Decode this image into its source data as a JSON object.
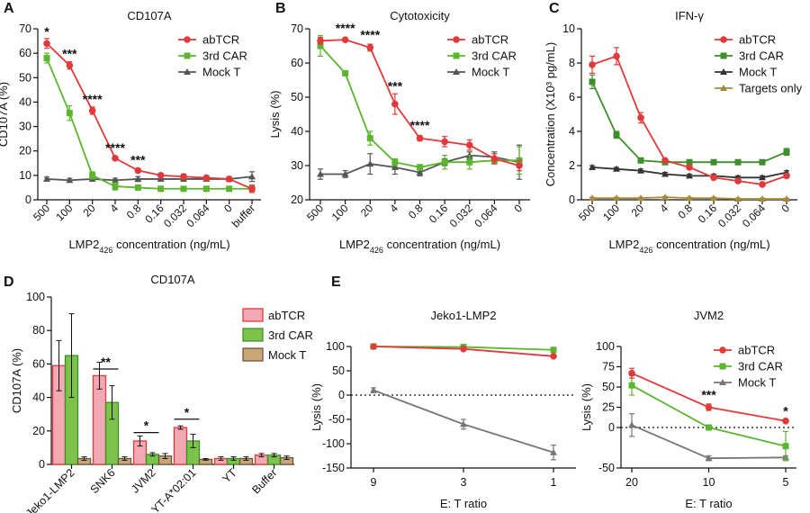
{
  "chart_data": [
    {
      "id": "A",
      "panel_letter": "A",
      "type": "line",
      "title": "CD107A",
      "xlabel_main": "LMP2",
      "xlabel_sub": "426",
      "xlabel_rest": " concentration (ng/mL)",
      "ylabel": "CD107A (%)",
      "ylim": [
        0,
        70
      ],
      "yticks": [
        0,
        10,
        20,
        30,
        40,
        50,
        60,
        70
      ],
      "categories": [
        "500",
        "100",
        "20",
        "4",
        "0.8",
        "0.16",
        "0.032",
        "0.064",
        "0",
        "buffer"
      ],
      "legend": "top-right",
      "series": [
        {
          "name": "abTCR",
          "color": "#e03a3a",
          "values": [
            64,
            55,
            36.5,
            17,
            12,
            10,
            9.5,
            9,
            8.5,
            4.5
          ],
          "err": [
            2,
            1.5,
            1.5,
            0.8,
            0.8,
            0.8,
            1,
            0.8,
            1,
            1.5
          ]
        },
        {
          "name": "3rd CAR",
          "color": "#5bb52f",
          "values": [
            58,
            35.5,
            10,
            5.5,
            5,
            4.5,
            4.5,
            4.5,
            4.5,
            4.5
          ],
          "err": [
            2,
            3,
            1.5,
            1.5,
            0.5,
            0.5,
            0.5,
            0.5,
            0.5,
            0.5
          ]
        },
        {
          "name": "Mock T",
          "color": "#555555",
          "values": [
            8.5,
            8,
            8.5,
            8,
            8.5,
            8.5,
            8.5,
            8.5,
            8.5,
            9.5
          ],
          "err": [
            0.8,
            0.8,
            0.8,
            0.8,
            1,
            0.8,
            0.8,
            0.8,
            0.8,
            2
          ]
        }
      ],
      "annotations": [
        {
          "text": "*",
          "x": 0,
          "y": 67
        },
        {
          "text": "***",
          "x": 1,
          "y": 58
        },
        {
          "text": "****",
          "x": 2,
          "y": 39.5
        },
        {
          "text": "****",
          "x": 3,
          "y": 19.5
        },
        {
          "text": "***",
          "x": 4,
          "y": 14.5
        }
      ]
    },
    {
      "id": "B",
      "panel_letter": "B",
      "type": "line",
      "title": "Cytotoxicity",
      "xlabel_main": "LMP2",
      "xlabel_sub": "426",
      "xlabel_rest": " concentration (ng/mL)",
      "ylabel": "Lysis (%)",
      "ylim": [
        20,
        70
      ],
      "yticks": [
        20,
        30,
        40,
        50,
        60,
        70
      ],
      "categories": [
        "500",
        "100",
        "20",
        "4",
        "0.8",
        "0.16",
        "0.032",
        "0.064",
        "0"
      ],
      "legend": "top-right",
      "series": [
        {
          "name": "abTCR",
          "color": "#e03a3a",
          "values": [
            66.5,
            66.8,
            64.5,
            48,
            38,
            37,
            36,
            32,
            30
          ],
          "err": [
            1,
            0.5,
            1,
            3,
            0.8,
            1.5,
            1.5,
            1.5,
            1.5
          ]
        },
        {
          "name": "3rd CAR",
          "color": "#5bb52f",
          "values": [
            65,
            57,
            38,
            31,
            29.5,
            31,
            31,
            31.5,
            31.5
          ],
          "err": [
            3,
            0.5,
            2,
            1,
            0.8,
            2,
            2,
            1,
            4
          ]
        },
        {
          "name": "Mock T",
          "color": "#555555",
          "values": [
            27.5,
            27.5,
            30.5,
            29.5,
            28,
            31,
            33,
            32.5,
            31
          ],
          "err": [
            1.5,
            1,
            3,
            2,
            1,
            1,
            1,
            1.5,
            5
          ]
        }
      ],
      "annotations": [
        {
          "text": "****",
          "x": 1,
          "y": 69
        },
        {
          "text": "****",
          "x": 2,
          "y": 67
        },
        {
          "text": "***",
          "x": 3,
          "y": 52
        },
        {
          "text": "****",
          "x": 4,
          "y": 40.5
        }
      ]
    },
    {
      "id": "C",
      "panel_letter": "C",
      "type": "line",
      "title": "IFN-γ",
      "xlabel_main": "LMP2",
      "xlabel_sub": "426",
      "xlabel_rest": " concentration (ng/mL)",
      "ylabel": "Concentration (X10³ pg/mL)",
      "ylim": [
        0,
        10
      ],
      "yticks": [
        0,
        2,
        4,
        6,
        8,
        10
      ],
      "categories": [
        "500",
        "100",
        "20",
        "4",
        "0.8",
        "0.16",
        "0.032",
        "0.064",
        "0"
      ],
      "legend": "top-right",
      "series": [
        {
          "name": "abTCR",
          "color": "#e03a3a",
          "values": [
            7.9,
            8.4,
            4.8,
            2.3,
            1.9,
            1.3,
            1.1,
            0.9,
            1.4
          ],
          "err": [
            0.5,
            0.5,
            0.3,
            0.1,
            0.1,
            0.1,
            0.1,
            0.1,
            0.1
          ]
        },
        {
          "name": "3rd CAR",
          "color": "#3e8f2c",
          "values": [
            6.9,
            3.8,
            2.3,
            2.2,
            2.2,
            2.2,
            2.2,
            2.2,
            2.8
          ],
          "err": [
            0.4,
            0.2,
            0.1,
            0.1,
            0.1,
            0.1,
            0.1,
            0.1,
            0.2
          ]
        },
        {
          "name": "Mock T",
          "color": "#333333",
          "values": [
            1.9,
            1.8,
            1.7,
            1.5,
            1.4,
            1.4,
            1.3,
            1.3,
            1.6
          ],
          "err": [
            0.1,
            0.1,
            0.1,
            0.1,
            0.1,
            0.1,
            0.1,
            0.1,
            0.1
          ]
        },
        {
          "name": "Targets only",
          "color": "#a58a3a",
          "values": [
            0.1,
            0.1,
            0.1,
            0.15,
            0.1,
            0.1,
            0.05,
            0.05,
            0.05
          ],
          "err": [
            0.05,
            0.05,
            0.05,
            0.05,
            0.05,
            0.05,
            0.05,
            0.05,
            0.05
          ]
        }
      ],
      "annotations": []
    },
    {
      "id": "D",
      "panel_letter": "D",
      "type": "bar",
      "title": "CD107A",
      "xlabel_main": "",
      "xlabel_sub": "",
      "xlabel_rest": "",
      "ylabel": "CD107A (%)",
      "ylim": [
        0,
        100
      ],
      "yticks": [
        0,
        20,
        40,
        60,
        80,
        100
      ],
      "categories": [
        "Jeko1-LMP2",
        "SNK6",
        "JVM2",
        "YT-A*02:01",
        "YT",
        "Buffer"
      ],
      "legend": "right",
      "series": [
        {
          "name": "abTCR",
          "color": "#e03a3a",
          "fill": "#f2a9b4",
          "values": [
            59,
            53,
            14,
            22,
            3.5,
            5.5
          ],
          "err": [
            15,
            8,
            3,
            1,
            1,
            1
          ]
        },
        {
          "name": "3rd CAR",
          "color": "#3e8f2c",
          "fill": "#7cc24b",
          "values": [
            65,
            37,
            6,
            14,
            3.5,
            5.5
          ],
          "err": [
            25,
            10,
            1,
            4,
            1,
            1
          ]
        },
        {
          "name": "Mock T",
          "color": "#6b5a3a",
          "fill": "#c9a67a",
          "values": [
            3.5,
            3.5,
            5,
            3,
            3.5,
            4
          ],
          "err": [
            1,
            1,
            1.5,
            0.5,
            1,
            1
          ]
        }
      ],
      "brackets": [
        {
          "text": "**",
          "group": 1,
          "y": 57
        },
        {
          "text": "*",
          "group": 2,
          "y": 19
        },
        {
          "text": "*",
          "group": 3,
          "y": 27
        }
      ]
    },
    {
      "id": "E1",
      "panel_letter": "E",
      "type": "line",
      "title": "Jeko1-LMP2",
      "xlabel_main": "E: T ratio",
      "xlabel_sub": "",
      "xlabel_rest": "",
      "ylabel": "Lysis (%)",
      "ylim": [
        -150,
        100
      ],
      "yticks": [
        -150,
        -100,
        -50,
        0,
        50,
        100
      ],
      "categories": [
        "9",
        "3",
        "1"
      ],
      "legend": "none",
      "series": [
        {
          "name": "abTCR",
          "color": "#e03a3a",
          "values": [
            100,
            95,
            80
          ],
          "err": [
            1,
            1,
            2
          ]
        },
        {
          "name": "3rd CAR",
          "color": "#5bb52f",
          "values": [
            100,
            99,
            93
          ],
          "err": [
            1,
            1,
            1
          ]
        },
        {
          "name": "Mock T",
          "color": "#777777",
          "values": [
            10,
            -60,
            -118
          ],
          "err": [
            5,
            10,
            15
          ]
        }
      ],
      "annotations": []
    },
    {
      "id": "E2",
      "panel_letter": "",
      "type": "line",
      "title": "JVM2",
      "xlabel_main": "E: T ratio",
      "xlabel_sub": "",
      "xlabel_rest": "",
      "ylabel": "Lysis (%)",
      "ylim": [
        -50,
        100
      ],
      "yticks": [
        -50,
        0,
        25,
        50,
        75,
        100
      ],
      "categories": [
        "20",
        "10",
        "5"
      ],
      "legend": "top-right",
      "series": [
        {
          "name": "abTCR",
          "color": "#e03a3a",
          "values": [
            67,
            25,
            8
          ],
          "err": [
            6,
            4,
            1
          ]
        },
        {
          "name": "3rd CAR",
          "color": "#5bb52f",
          "values": [
            52,
            0,
            -23
          ],
          "err": [
            12,
            1,
            18
          ]
        },
        {
          "name": "Mock T",
          "color": "#777777",
          "values": [
            3,
            -38,
            -37
          ],
          "err": [
            14,
            3,
            2
          ]
        }
      ],
      "annotations": [
        {
          "text": "***",
          "x": 1,
          "y": 35
        },
        {
          "text": "*",
          "x": 2,
          "y": 15
        }
      ]
    }
  ]
}
